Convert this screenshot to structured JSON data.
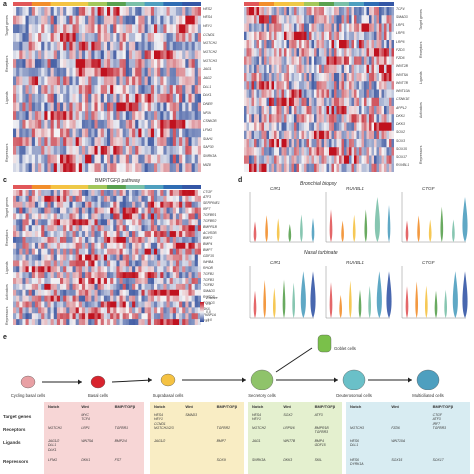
{
  "panels": {
    "a": "a",
    "c": "c",
    "d": "d",
    "e": "e"
  },
  "colors": {
    "red": "#c0121f",
    "blue": "#2c4a9a",
    "white": "#f4f3f5",
    "cluster_bar": [
      "#e15759",
      "#f28e2b",
      "#f5c242",
      "#edc948",
      "#a3c75a",
      "#59a14f",
      "#7ac0a8",
      "#4e9fbf",
      "#2f6db3",
      "#3457a6"
    ]
  },
  "heatmap_a": {
    "sections": [
      "Target genes",
      "Receptors",
      "Ligands",
      "Repressors"
    ],
    "genes": [
      "HES2",
      "HES4",
      "HEY1",
      "CCND1",
      "NOTCH1",
      "NOTCH2",
      "NOTCH3",
      "JAG1",
      "JAG2",
      "DLL1",
      "DLK1",
      "DNER",
      "NFIA",
      "CSNK2B",
      "LFNG",
      "SIAH1",
      "SAP30",
      "SNRK3A",
      "MIZ8"
    ]
  },
  "heatmap_b": {
    "sections": [
      "Target genes",
      "Receptors",
      "Ligands",
      "Activators",
      "Repressors"
    ],
    "genes": [
      "TCF4",
      "SMAD3",
      "LRP1",
      "LRP5",
      "LRP6",
      "FZD3",
      "FZD6",
      "WNT2B",
      "WNT5A",
      "WNT7B",
      "WNT10A",
      "CSNK1E",
      "APPL2",
      "DKK1",
      "DKK3",
      "SOX2",
      "SOX3",
      "SOX15",
      "SOX17",
      "RUVBL1"
    ]
  },
  "heatmap_c": {
    "title": "BMP/TGFβ pathway",
    "sections": [
      "Target genes",
      "Receptors",
      "Ligands",
      "Activators",
      "Repressors"
    ],
    "genes": [
      "CTGF",
      "ATF3",
      "SERPINE1",
      "IRF7",
      "TGFBR1",
      "TGFBR2",
      "BMPR1B",
      "ACVR2B",
      "BMP2",
      "BMP4",
      "BMP7",
      "GDF15",
      "INHBA",
      "RHOB",
      "TGFB1",
      "TGFB3",
      "TGFB2",
      "SMAD3",
      "RUSD3",
      "FOXO3",
      "SKIL",
      "FKBP1A",
      "FST"
    ],
    "scale_label": "Z-score",
    "scale_ticks": [
      "1.0",
      "0.5",
      "0.0",
      "-0.5",
      "-1.0"
    ]
  },
  "violin_d": {
    "title_top": "Bronchial biopsy",
    "title_bottom": "Nasal turbinate",
    "genes": [
      "CIR1",
      "RUVBL1",
      "CTGF"
    ],
    "ylabel": "Lognormalized UMI counts",
    "groups": [
      "Cycling basal",
      "Basal",
      "Suprabasal",
      "Secretory",
      "Goblet",
      "Multiciliated",
      "MCCs"
    ]
  },
  "pathway_e": {
    "cells": [
      "Cycling basal cells",
      "Basal cells",
      "Suprabasal cells",
      "Secretory cells",
      "Deuterosomal cells",
      "Multiciliated cells"
    ],
    "goblet": "Goblet cells",
    "row_heads": [
      "Target genes",
      "Receptors",
      "Ligands",
      "Repressors"
    ],
    "col_heads": [
      "Notch",
      "Wnt",
      "BMP/TGFβ"
    ],
    "blocks": [
      {
        "cols": [
          [
            "",
            "MYC\nTCF4",
            ""
          ],
          [
            "NOTCH1",
            "LRP1",
            "TGFBR1"
          ],
          [
            "JAG1/2\nDLL1\nDLK1",
            "WNT5A",
            "BMP2/4"
          ],
          [
            "LFNG",
            "DKK1",
            "FST"
          ]
        ]
      },
      {
        "cols": [
          [
            "HES4\nHEY1\nCCND1",
            "SMAD3",
            ""
          ],
          [
            "NOTCH1/2/3",
            "",
            "TGFBR2"
          ],
          [
            "JAG1/2",
            "",
            "BMP7"
          ],
          [
            "",
            "",
            "SOX9"
          ]
        ]
      },
      {
        "cols": [
          [
            "HES4\nHEY1",
            "SOX2",
            "ATF3"
          ],
          [
            "NOTCH2",
            "LRP5/6",
            "BMPR1B\nTGFBR3"
          ],
          [
            "JAG1",
            "WNT7B",
            "BMP4\nGDF15"
          ],
          [
            "SNRK3A",
            "DKK3",
            "SKIL"
          ]
        ]
      },
      {
        "cols": [
          [
            "",
            "",
            "CTGF\nATF3\nIRF7"
          ],
          [
            "NOTCH3",
            "FZD6",
            "TGFBR3"
          ],
          [
            "HES6\nDLL1",
            "WNT10A",
            ""
          ],
          [
            "HES6\nDYRK1A",
            "SOX15",
            "SOX17"
          ]
        ]
      }
    ]
  }
}
